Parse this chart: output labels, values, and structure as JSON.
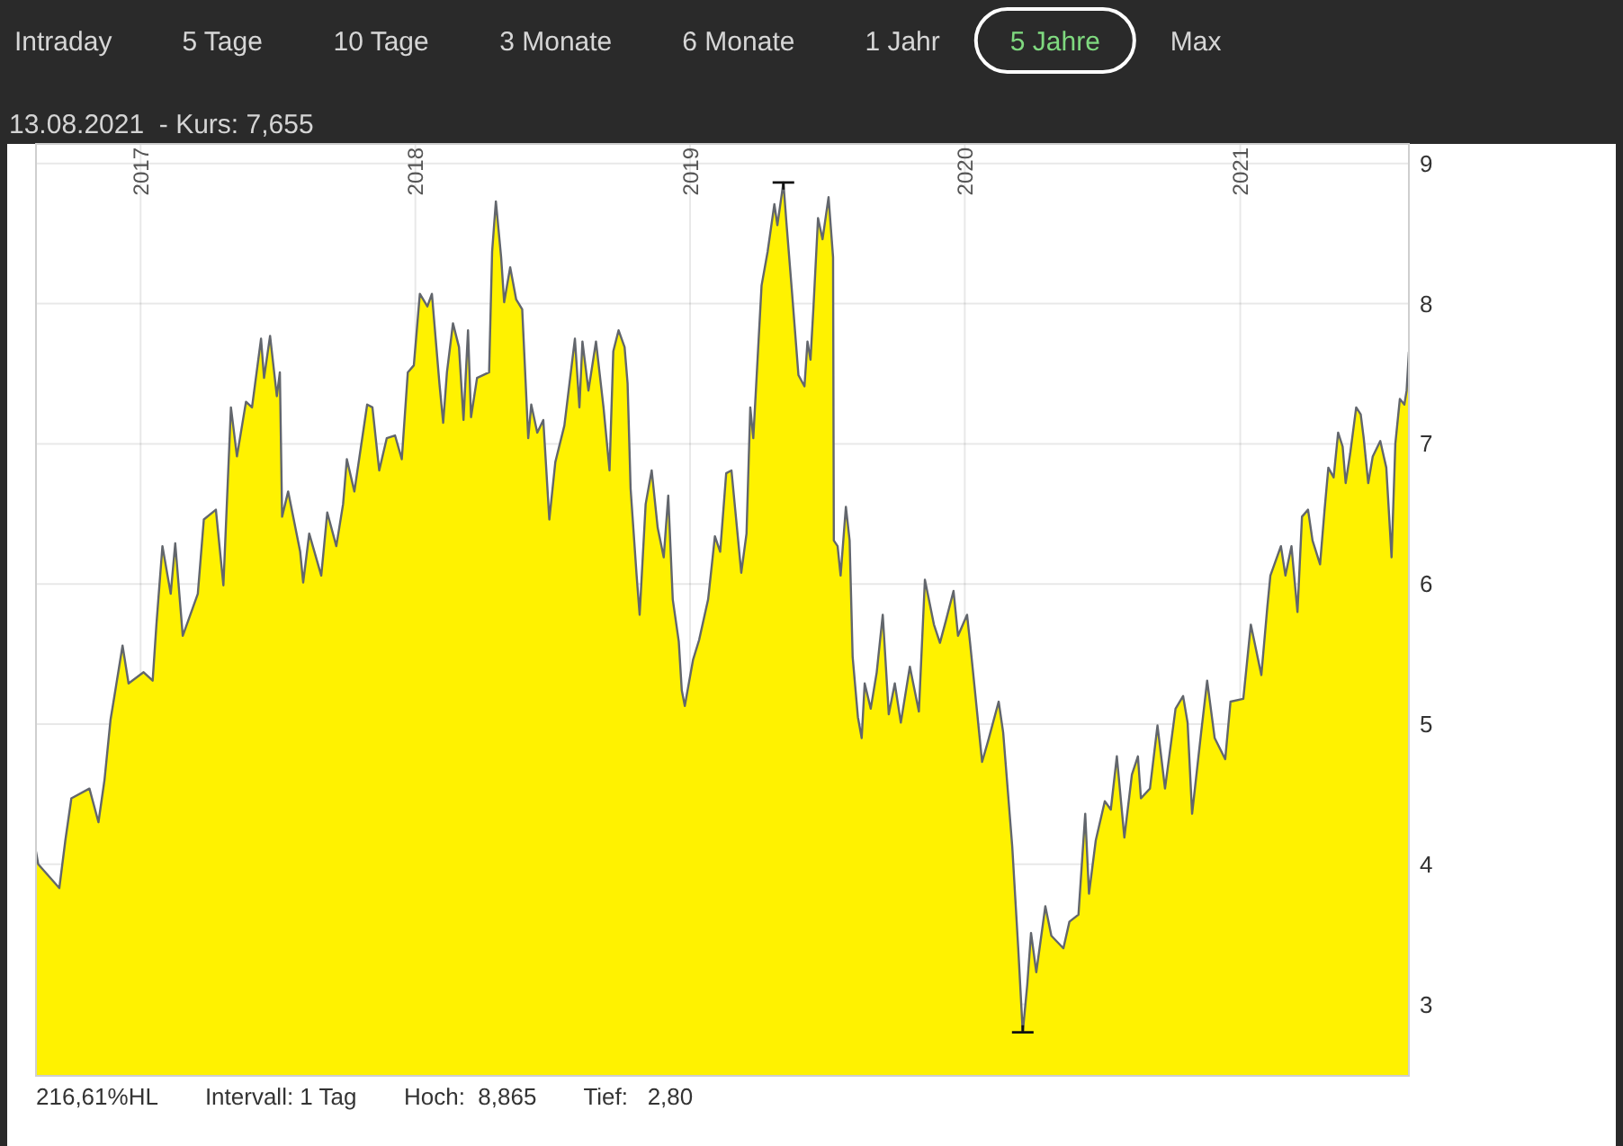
{
  "chart_data": [
    {
      "type": "other",
      "categories": [
        "Intraday",
        "5 Tage",
        "10 Tage",
        "3 Monate",
        "6 Monate",
        "1 Jahr",
        "5 Jahre",
        "Max"
      ],
      "colors": [
        "#d6d6d6",
        "#d6d6d6",
        "#d6d6d6",
        "#d6d6d6",
        "#d6d6d6",
        "#d6d6d6",
        "#7fd97f",
        "#d6d6d6"
      ]
    },
    {
      "type": "area",
      "title": "13.08.2021  - Kurs: 7,655",
      "x": [
        "2016-08-15",
        "2016-08-18",
        "2016-09-15",
        "2016-09-23",
        "2016-10-01",
        "2016-10-25",
        "2016-11-06",
        "2016-11-14",
        "2016-11-22",
        "2016-11-26",
        "2016-12-08",
        "2016-12-16",
        "2017-01-05",
        "2017-01-17",
        "2017-01-22",
        "2017-01-30",
        "2017-02-10",
        "2017-02-16",
        "2017-02-26",
        "2017-03-18",
        "2017-03-26",
        "2017-04-11",
        "2017-04-21",
        "2017-05-01",
        "2017-05-09",
        "2017-05-21",
        "2017-05-29",
        "2017-06-10",
        "2017-06-14",
        "2017-06-22",
        "2017-07-01",
        "2017-07-05",
        "2017-07-08",
        "2017-07-16",
        "2017-08-01",
        "2017-08-05",
        "2017-08-13",
        "2017-08-29",
        "2017-09-06",
        "2017-09-18",
        "2017-09-27",
        "2017-10-02",
        "2017-10-12",
        "2017-10-29",
        "2017-11-05",
        "2017-11-14",
        "2017-11-24",
        "2017-12-05",
        "2017-12-14",
        "2017-12-22",
        "2017-12-30",
        "2018-01-07",
        "2018-01-17",
        "2018-01-23",
        "2018-02-02",
        "2018-02-07",
        "2018-02-12",
        "2018-02-20",
        "2018-02-28",
        "2018-03-06",
        "2018-03-12",
        "2018-03-16",
        "2018-03-24",
        "2018-04-09",
        "2018-04-13",
        "2018-04-18",
        "2018-04-25",
        "2018-04-29",
        "2018-05-07",
        "2018-05-15",
        "2018-05-23",
        "2018-05-31",
        "2018-06-04",
        "2018-06-12",
        "2018-06-20",
        "2018-06-28",
        "2018-07-06",
        "2018-07-18",
        "2018-08-01",
        "2018-08-07",
        "2018-08-11",
        "2018-08-19",
        "2018-08-29",
        "2018-09-08",
        "2018-09-16",
        "2018-09-21",
        "2018-09-28",
        "2018-10-06",
        "2018-10-10",
        "2018-10-14",
        "2018-10-22",
        "2018-10-26",
        "2018-11-03",
        "2018-11-11",
        "2018-11-19",
        "2018-11-27",
        "2018-12-03",
        "2018-12-09",
        "2018-12-17",
        "2018-12-21",
        "2018-12-25",
        "2019-01-05",
        "2019-01-13",
        "2019-01-25",
        "2019-02-03",
        "2019-02-10",
        "2019-02-18",
        "2019-02-25",
        "2019-03-02",
        "2019-03-10",
        "2019-03-17",
        "2019-03-22",
        "2019-03-26",
        "2019-04-06",
        "2019-04-14",
        "2019-04-23",
        "2019-04-27",
        "2019-05-05",
        "2019-05-09",
        "2019-05-16",
        "2019-05-25",
        "2019-06-02",
        "2019-06-06",
        "2019-06-10",
        "2019-06-14",
        "2019-06-20",
        "2019-06-26",
        "2019-07-04",
        "2019-07-10",
        "2019-07-11",
        "2019-07-16",
        "2019-07-20",
        "2019-07-27",
        "2019-08-01",
        "2019-08-05",
        "2019-08-12",
        "2019-08-17",
        "2019-08-21",
        "2019-08-29",
        "2019-09-06",
        "2019-09-14",
        "2019-09-22",
        "2019-09-30",
        "2019-10-08",
        "2019-10-20",
        "2019-11-01",
        "2019-11-09",
        "2019-11-21",
        "2019-11-29",
        "2019-12-07",
        "2019-12-17",
        "2019-12-23",
        "2020-01-04",
        "2020-01-08",
        "2020-01-12",
        "2020-01-24",
        "2020-02-01",
        "2020-02-15",
        "2020-02-21",
        "2020-03-04",
        "2020-03-12",
        "2020-03-18",
        "2020-03-24",
        "2020-03-29",
        "2020-04-05",
        "2020-04-17",
        "2020-04-25",
        "2020-05-11",
        "2020-05-19",
        "2020-05-31",
        "2020-06-09",
        "2020-06-14",
        "2020-06-23",
        "2020-07-05",
        "2020-07-13",
        "2020-07-21",
        "2020-07-31",
        "2020-08-10",
        "2020-08-18",
        "2020-08-22",
        "2020-09-03",
        "2020-09-13",
        "2020-09-23",
        "2020-10-07",
        "2020-10-17",
        "2020-10-23",
        "2020-10-29",
        "2020-11-10",
        "2020-11-18",
        "2020-11-28",
        "2020-12-12",
        "2020-12-19",
        "2021-01-05",
        "2021-01-09",
        "2021-01-15",
        "2021-01-29",
        "2021-02-06",
        "2021-02-10",
        "2021-02-24",
        "2021-03-02",
        "2021-03-10",
        "2021-03-18",
        "2021-03-24",
        "2021-04-01",
        "2021-04-07",
        "2021-04-17",
        "2021-04-23",
        "2021-04-28",
        "2021-05-05",
        "2021-05-11",
        "2021-05-17",
        "2021-05-21",
        "2021-05-27",
        "2021-06-04",
        "2021-06-10",
        "2021-06-14",
        "2021-06-20",
        "2021-06-26",
        "2021-07-06",
        "2021-07-14",
        "2021-07-21",
        "2021-07-26",
        "2021-08-01",
        "2021-08-07",
        "2021-08-10",
        "2021-08-13"
      ],
      "series": [
        {
          "type": "area",
          "color": "#fff200",
          "values": [
            4.09,
            4.0,
            3.83,
            4.17,
            4.47,
            4.54,
            4.3,
            4.6,
            5.03,
            5.16,
            5.56,
            5.29,
            5.37,
            5.31,
            5.71,
            6.27,
            5.93,
            6.29,
            5.63,
            5.93,
            6.46,
            6.53,
            5.99,
            7.26,
            6.91,
            7.3,
            7.26,
            7.75,
            7.47,
            7.77,
            7.34,
            7.51,
            6.48,
            6.66,
            6.23,
            6.01,
            6.36,
            6.06,
            6.51,
            6.27,
            6.57,
            6.89,
            6.66,
            7.28,
            7.26,
            6.81,
            7.04,
            7.06,
            6.89,
            7.51,
            7.56,
            8.07,
            7.98,
            8.07,
            7.43,
            7.15,
            7.51,
            7.86,
            7.69,
            7.17,
            7.81,
            7.19,
            7.47,
            7.51,
            8.37,
            8.73,
            8.33,
            8.01,
            8.26,
            8.03,
            7.96,
            7.04,
            7.28,
            7.08,
            7.17,
            6.46,
            6.87,
            7.13,
            7.75,
            7.26,
            7.73,
            7.38,
            7.73,
            7.26,
            6.81,
            7.66,
            7.81,
            7.69,
            7.43,
            6.68,
            6.06,
            5.78,
            6.57,
            6.81,
            6.4,
            6.19,
            6.63,
            5.89,
            5.59,
            5.24,
            5.13,
            5.46,
            5.6,
            5.89,
            6.34,
            6.23,
            6.79,
            6.81,
            6.53,
            6.08,
            6.36,
            7.26,
            7.04,
            8.13,
            8.37,
            8.71,
            8.56,
            8.865,
            8.58,
            8.11,
            7.49,
            7.41,
            7.73,
            7.6,
            7.98,
            8.61,
            8.46,
            8.76,
            8.33,
            6.31,
            6.27,
            6.06,
            6.55,
            6.31,
            5.48,
            5.05,
            4.9,
            5.29,
            5.11,
            5.37,
            5.78,
            5.07,
            5.29,
            5.01,
            5.41,
            5.09,
            6.03,
            5.71,
            5.58,
            5.74,
            5.95,
            5.63,
            5.78,
            5.58,
            5.37,
            4.73,
            4.88,
            5.16,
            4.94,
            4.13,
            3.4,
            2.8,
            3.14,
            3.51,
            3.23,
            3.7,
            3.49,
            3.4,
            3.59,
            3.64,
            4.36,
            3.79,
            4.17,
            4.45,
            4.39,
            4.77,
            4.19,
            4.64,
            4.77,
            4.47,
            4.54,
            4.99,
            4.54,
            5.11,
            5.2,
            5.01,
            4.36,
            4.94,
            5.31,
            4.9,
            4.75,
            5.16,
            5.18,
            5.39,
            5.71,
            5.35,
            5.84,
            6.06,
            6.27,
            6.06,
            6.27,
            5.8,
            6.48,
            6.53,
            6.31,
            6.14,
            6.53,
            6.83,
            6.76,
            7.08,
            6.98,
            6.72,
            6.93,
            7.26,
            7.21,
            7.04,
            6.72,
            6.91,
            7.02,
            6.83,
            6.19,
            7.0,
            7.32,
            7.28,
            7.38,
            7.655
          ]
        },
        {
          "type": "scatter",
          "color": "#111111",
          "x": [
            "2019-05-05",
            "2020-03-18"
          ],
          "values": [
            8.865,
            2.8
          ]
        }
      ],
      "xlim": [
        "2016-08-15",
        "2021-08-13"
      ],
      "xticks": [
        "2017",
        "2018",
        "2019",
        "2020",
        "2021"
      ],
      "ylim": [
        2.49,
        9.14
      ],
      "yticks": [
        3,
        4,
        5,
        6,
        7,
        8,
        9
      ],
      "grid": true,
      "annotations": [
        "216,61%HL",
        "Intervall: 1 Tag",
        "Hoch:  8,865",
        "Tief:   2,80"
      ]
    }
  ]
}
